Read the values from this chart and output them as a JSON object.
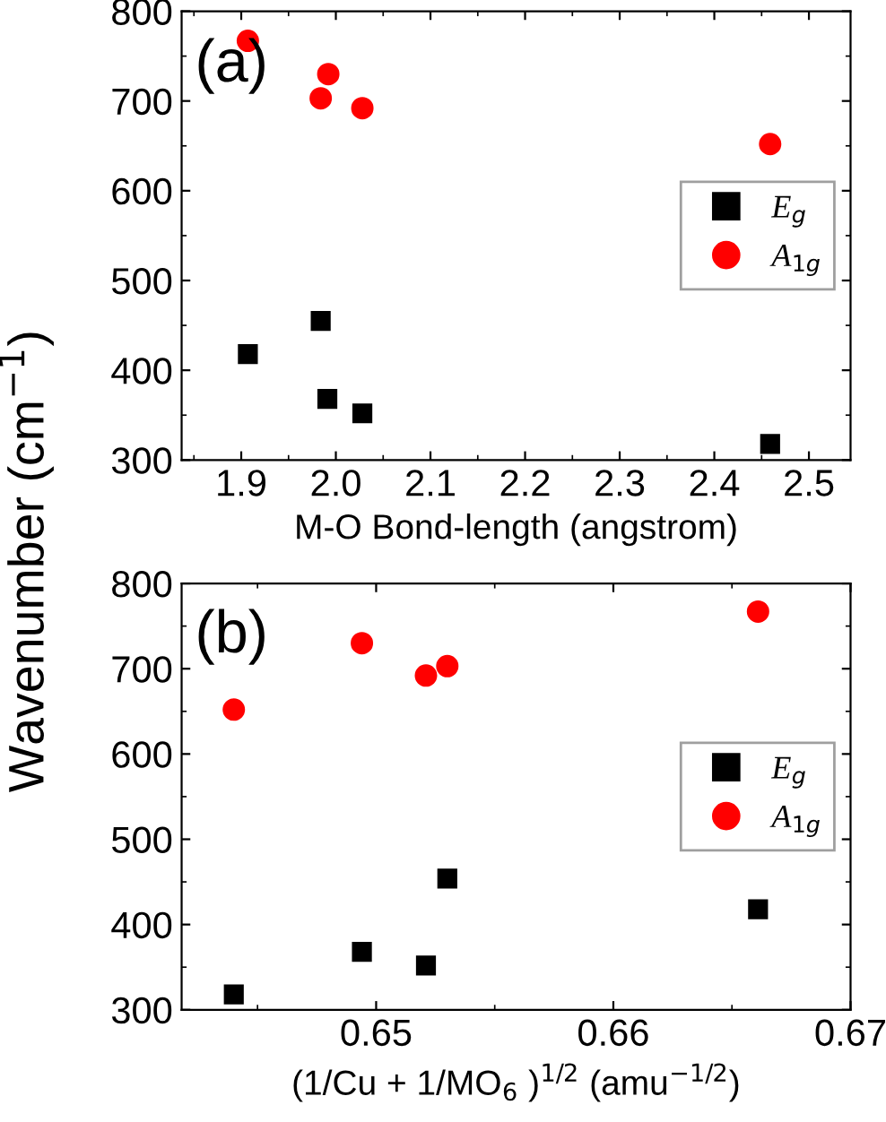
{
  "chart_data": [
    {
      "type": "scatter",
      "xlabel": "M-O Bond-length (angstrom)",
      "ylabel": "Wavenumber (cm$^{−1}$)",
      "annotations": [
        "(a)"
      ],
      "xlim": [
        1.837,
        2.544
      ],
      "ylim": [
        300,
        800
      ],
      "xticks": [
        1.9,
        {
          "value": 2.0,
          "label": "2.0"
        },
        2.1,
        2.2,
        2.3,
        2.4,
        2.5
      ],
      "yticks": [
        300,
        400,
        500,
        600,
        700,
        800
      ],
      "legend": "right",
      "grid": false,
      "series": [
        {
          "name": "E$_{g}$",
          "color": "#000000",
          "marker": "square",
          "x": [
            1.907,
            1.984,
            1.991,
            2.028,
            2.459
          ],
          "values": [
            418,
            455,
            368,
            352,
            318
          ]
        },
        {
          "name": "A$_{1g}$",
          "color": "#ff0000",
          "marker": "circle",
          "x": [
            1.907,
            1.984,
            1.992,
            2.028,
            2.459
          ],
          "values": [
            767,
            703,
            730,
            692,
            652
          ]
        }
      ]
    },
    {
      "type": "scatter",
      "xlabel": "(1/Cu + 1/MO$_{6}$ )$^{1/2}$ (amu$^{−1/2}$)",
      "annotations": [
        "(b)"
      ],
      "xlim": [
        0.6418,
        0.67
      ],
      "ylim": [
        300,
        800
      ],
      "xticks": [
        0.65,
        0.66,
        0.67
      ],
      "yticks": [
        300,
        400,
        500,
        600,
        700,
        800
      ],
      "legend": "right",
      "grid": false,
      "series": [
        {
          "name": "E$_{g}$",
          "color": "#000000",
          "marker": "square",
          "x": [
            0.644,
            0.6494,
            0.6521,
            0.653,
            0.6661
          ],
          "values": [
            318,
            368,
            352,
            454,
            418
          ]
        },
        {
          "name": "A$_{1g}$",
          "color": "#ff0000",
          "marker": "circle",
          "x": [
            0.644,
            0.6494,
            0.6521,
            0.653,
            0.6661
          ],
          "values": [
            652,
            730,
            692,
            703,
            767
          ]
        }
      ]
    }
  ]
}
